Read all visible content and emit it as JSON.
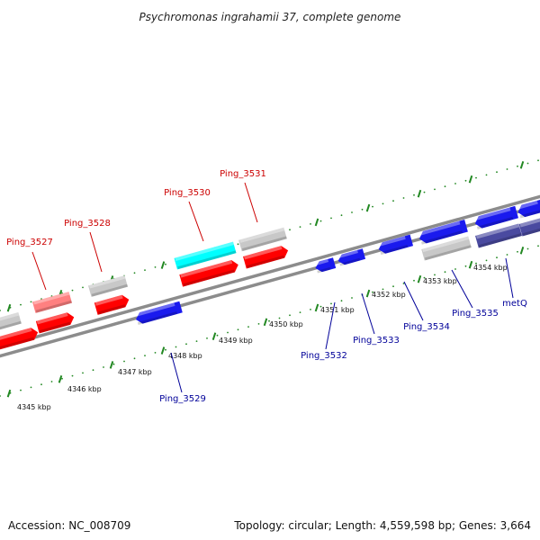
{
  "title": "Psychromonas ingrahamii 37, complete genome",
  "footer": {
    "accession": "Accession: NC_008709",
    "topology": "Topology: circular; Length: 4,559,598 bp; Genes: 3,664"
  },
  "colors": {
    "forward_label": "#cc0000",
    "reverse_label": "#000099",
    "tick": "#228822",
    "backbone": "#8c8c8c",
    "red": "#ff0000",
    "blue": "#1a1aee",
    "grey": "#c8c8c8",
    "cyan": "#00ffff",
    "pink": "#ff8080",
    "slate": "#4a4aa0"
  },
  "ticks": [
    {
      "label": "4345 kbp",
      "kbp": 4345
    },
    {
      "label": "4346 kbp",
      "kbp": 4346
    },
    {
      "label": "4347 kbp",
      "kbp": 4347
    },
    {
      "label": "4348 kbp",
      "kbp": 4348
    },
    {
      "label": "4349 kbp",
      "kbp": 4349
    },
    {
      "label": "4350 kbp",
      "kbp": 4350
    },
    {
      "label": "4351 kbp",
      "kbp": 4351
    },
    {
      "label": "4352 kbp",
      "kbp": 4352
    },
    {
      "label": "4353 kbp",
      "kbp": 4353
    },
    {
      "label": "4354 kbp",
      "kbp": 4354
    }
  ],
  "gene_labels": [
    {
      "name": "Ping_3527",
      "strand": "forward"
    },
    {
      "name": "Ping_3528",
      "strand": "forward"
    },
    {
      "name": "Ping_3530",
      "strand": "forward"
    },
    {
      "name": "Ping_3531",
      "strand": "forward"
    },
    {
      "name": "Ping_3529",
      "strand": "reverse"
    },
    {
      "name": "Ping_3532",
      "strand": "reverse"
    },
    {
      "name": "Ping_3533",
      "strand": "reverse"
    },
    {
      "name": "Ping_3534",
      "strand": "reverse"
    },
    {
      "name": "Ping_3535",
      "strand": "reverse"
    },
    {
      "name": "metQ",
      "strand": "reverse"
    }
  ]
}
